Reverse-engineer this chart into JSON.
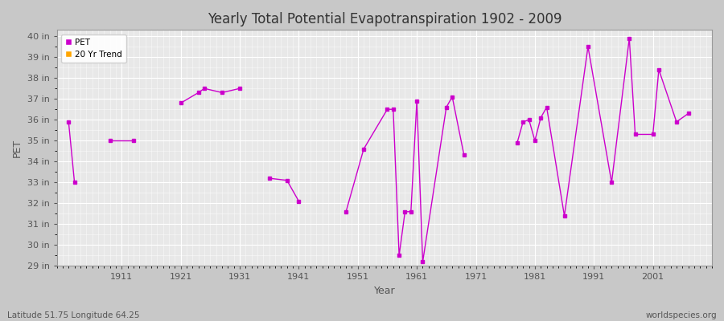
{
  "title": "Yearly Total Potential Evapotranspiration 1902 - 2009",
  "xlabel": "Year",
  "ylabel": "PET",
  "fig_facecolor": "#c8c8c8",
  "plot_bg_color": "#e8e8e8",
  "line_color": "#cc00cc",
  "trend_color": "#ffa500",
  "ylim": [
    29,
    40.3
  ],
  "xlim": [
    1900,
    2011
  ],
  "yticks": [
    29,
    30,
    31,
    32,
    33,
    34,
    35,
    36,
    37,
    38,
    39,
    40
  ],
  "ytick_labels": [
    "29 in",
    "30 in",
    "31 in",
    "32 in",
    "33 in",
    "34 in",
    "35 in",
    "36 in",
    "37 in",
    "38 in",
    "39 in",
    "40 in"
  ],
  "xticks": [
    1911,
    1921,
    1931,
    1941,
    1951,
    1961,
    1971,
    1981,
    1991,
    2001
  ],
  "lat_lon_text": "Latitude 51.75 Longitude 64.25",
  "source_text": "worldspecies.org",
  "years": [
    1902,
    1903,
    1909,
    1913,
    1921,
    1924,
    1925,
    1928,
    1931,
    1936,
    1939,
    1941,
    1949,
    1952,
    1956,
    1957,
    1958,
    1959,
    1960,
    1961,
    1962,
    1966,
    1967,
    1969,
    1978,
    1979,
    1980,
    1981,
    1982,
    1983,
    1986,
    1990,
    1994,
    1997,
    1998,
    2001,
    2002,
    2005,
    2007
  ],
  "values": [
    35.9,
    33.0,
    35.0,
    35.0,
    36.8,
    37.3,
    37.5,
    37.3,
    37.5,
    33.2,
    33.1,
    32.1,
    31.6,
    34.6,
    36.5,
    36.5,
    29.5,
    31.6,
    31.6,
    36.9,
    29.2,
    36.6,
    37.1,
    34.3,
    34.9,
    35.9,
    36.0,
    35.0,
    36.1,
    36.6,
    31.4,
    39.5,
    33.0,
    39.9,
    35.3,
    35.3,
    38.4,
    35.9,
    36.3
  ],
  "legend_entries": [
    "PET",
    "20 Yr Trend"
  ]
}
